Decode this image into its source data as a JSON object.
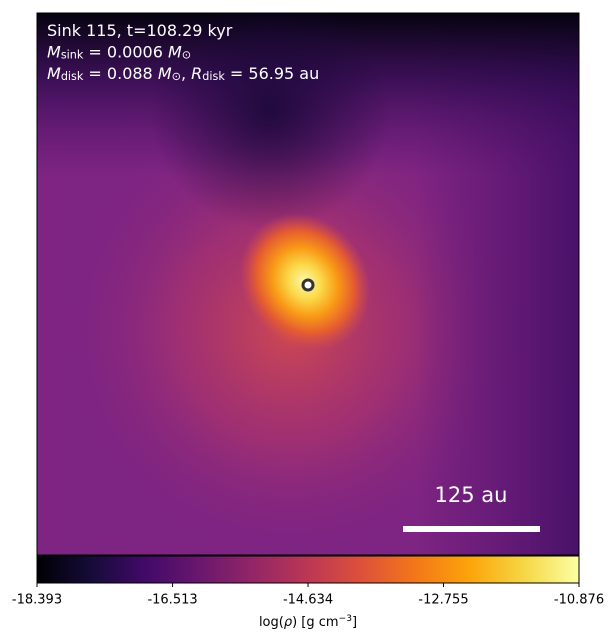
{
  "chart_data": {
    "type": "image",
    "annotations": [
      [
        {
          "text": "Sink 115, t=108.29 kyr"
        }
      ],
      [
        {
          "text": "M",
          "italic": true
        },
        {
          "text": "sink",
          "sub": true
        },
        {
          "text": " = 0.0006 "
        },
        {
          "text": "M",
          "italic": true
        },
        {
          "text": "⊙",
          "sub": true
        }
      ],
      [
        {
          "text": "M",
          "italic": true
        },
        {
          "text": "disk",
          "sub": true
        },
        {
          "text": " = 0.088 "
        },
        {
          "text": "M",
          "italic": true
        },
        {
          "text": "⊙",
          "sub": true
        },
        {
          "text": ", "
        },
        {
          "text": "R",
          "italic": true
        },
        {
          "text": "disk",
          "sub": true
        },
        {
          "text": " = 56.95 au"
        }
      ]
    ],
    "scale_bar": {
      "label": "125 au"
    },
    "colorbar": {
      "lim": [
        -18.393,
        -10.876
      ],
      "ticks": [
        -18.393,
        -16.513,
        -14.634,
        -12.755,
        -10.876
      ],
      "label": [
        {
          "text": "log("
        },
        {
          "text": "ρ",
          "italic": true
        },
        {
          "text": ") [g cm"
        },
        {
          "text": "−3",
          "sup": true
        },
        {
          "text": "]"
        }
      ]
    }
  }
}
